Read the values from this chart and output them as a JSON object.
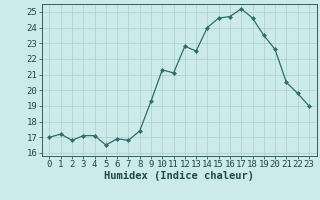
{
  "x": [
    0,
    1,
    2,
    3,
    4,
    5,
    6,
    7,
    8,
    9,
    10,
    11,
    12,
    13,
    14,
    15,
    16,
    17,
    18,
    19,
    20,
    21,
    22,
    23
  ],
  "y": [
    17.0,
    17.2,
    16.8,
    17.1,
    17.1,
    16.5,
    16.9,
    16.8,
    17.4,
    19.3,
    21.3,
    21.1,
    22.8,
    22.5,
    24.0,
    24.6,
    24.7,
    25.2,
    24.6,
    23.5,
    22.6,
    20.5,
    19.8,
    19.0
  ],
  "line_color": "#2d6e6e",
  "marker": "D",
  "marker_size": 2.0,
  "bg_color": "#cceaea",
  "grid_color": "#aacece",
  "xlabel": "Humidex (Indice chaleur)",
  "ylim": [
    15.8,
    25.5
  ],
  "yticks": [
    16,
    17,
    18,
    19,
    20,
    21,
    22,
    23,
    24,
    25
  ],
  "xticks": [
    0,
    1,
    2,
    3,
    4,
    5,
    6,
    7,
    8,
    9,
    10,
    11,
    12,
    13,
    14,
    15,
    16,
    17,
    18,
    19,
    20,
    21,
    22,
    23
  ],
  "title_color": "#1a4a4a",
  "tick_fontsize": 6.5,
  "xlabel_fontsize": 7.5
}
